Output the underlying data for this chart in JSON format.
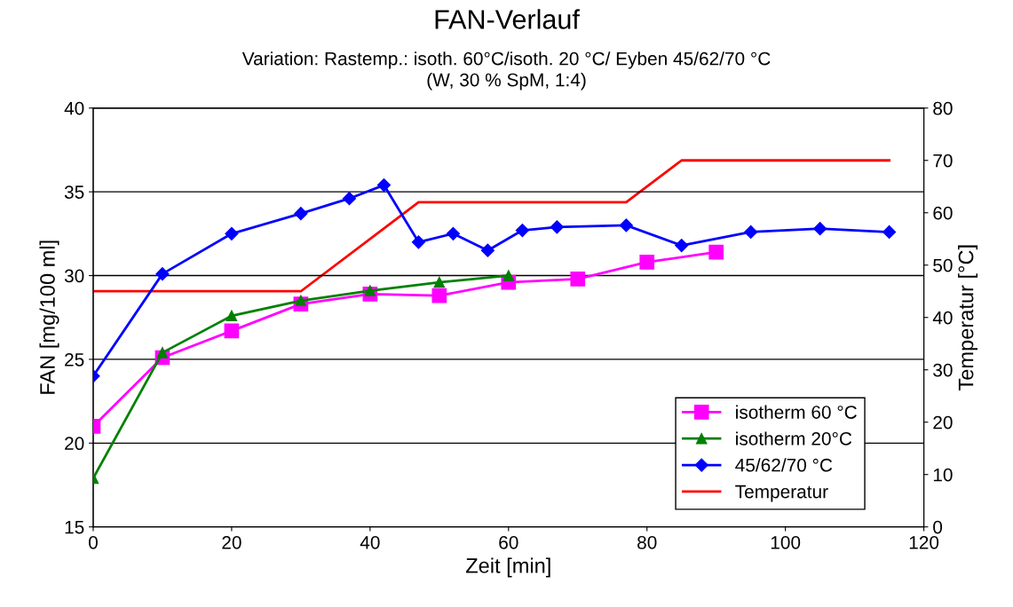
{
  "chart_data": {
    "type": "line",
    "title": "FAN-Verlauf",
    "subtitle": "Variation: Rastemp.: isoth. 60°C/isoth. 20 °C/ Eyben 45/62/70 °C\n(W, 30 % SpM, 1:4)",
    "xlabel": "Zeit [min]",
    "ylabel": "FAN [mg/100 ml]",
    "y2label": "Temperatur [°C]",
    "xlim": [
      0,
      120
    ],
    "xticks": [
      0,
      20,
      40,
      60,
      80,
      100,
      120
    ],
    "ylim": [
      15,
      40
    ],
    "yticks": [
      15,
      20,
      25,
      30,
      35,
      40
    ],
    "y2lim": [
      0,
      80
    ],
    "y2ticks": [
      0,
      10,
      20,
      30,
      40,
      50,
      60,
      70,
      80
    ],
    "grid": "y",
    "legend": "bottom right",
    "series": [
      {
        "name": "isotherm 60 °C",
        "color": "#ff00ff",
        "marker": "square",
        "x": [
          0,
          10,
          20,
          30,
          40,
          50,
          60,
          70,
          80,
          90
        ],
        "values": [
          21.0,
          25.1,
          26.7,
          28.3,
          28.9,
          28.8,
          29.6,
          29.8,
          30.8,
          31.4
        ]
      },
      {
        "name": "isotherm 20°C",
        "color": "#008000",
        "marker": "triangle",
        "x": [
          0,
          10,
          20,
          30,
          40,
          50,
          60
        ],
        "values": [
          17.9,
          25.4,
          27.6,
          28.5,
          29.1,
          29.6,
          30.0
        ]
      },
      {
        "name": "45/62/70 °C",
        "color": "#0000ff",
        "marker": "diamond",
        "x": [
          0,
          10,
          20,
          30,
          37,
          42,
          47,
          52,
          57,
          62,
          67,
          77,
          85,
          95,
          105,
          115
        ],
        "values": [
          24.0,
          30.1,
          32.5,
          33.7,
          34.6,
          35.4,
          32.0,
          32.5,
          31.5,
          32.7,
          32.9,
          33.0,
          31.8,
          32.6,
          32.8,
          32.6
        ]
      },
      {
        "name": "Temperatur",
        "color": "#ff0000",
        "marker": "none",
        "axis": "y2",
        "x": [
          0,
          30,
          47,
          77,
          85,
          115
        ],
        "values": [
          45,
          45,
          62,
          62,
          70,
          70
        ]
      }
    ]
  }
}
